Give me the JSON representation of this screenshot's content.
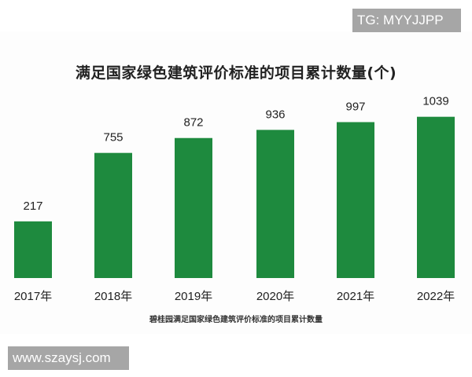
{
  "watermarks": {
    "top_right": "TG: MYYJJPP",
    "bottom_left": "www.szaysj.com"
  },
  "chart_data": {
    "type": "bar",
    "title": "满足国家绿色建筑评价标准的项目累计数量(个)",
    "subtitle": "碧桂园满足国家绿色建筑评价标准的项目累计数量",
    "categories": [
      "2017年",
      "2018年",
      "2019年",
      "2020年",
      "2021年",
      "2022年"
    ],
    "values": [
      217,
      755,
      872,
      936,
      997,
      1039
    ],
    "data_labels": [
      "217",
      "755",
      "872",
      "936",
      "997",
      "1039"
    ],
    "bar_color": "#1e8a3e",
    "grid": false,
    "legend": "none"
  }
}
